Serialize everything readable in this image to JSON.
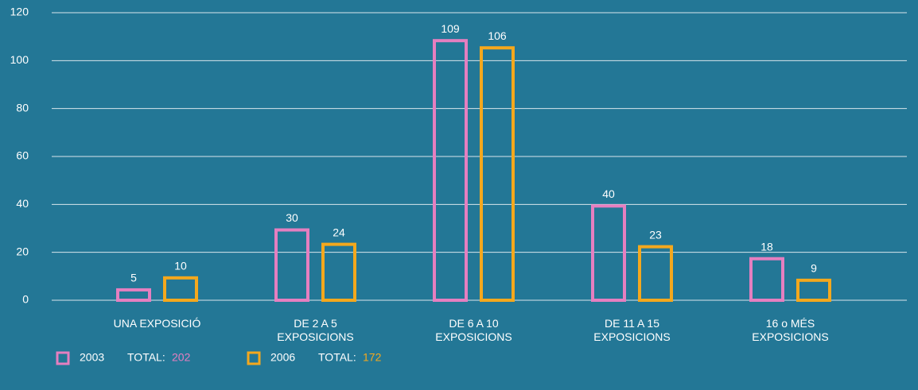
{
  "chart_data": {
    "type": "bar",
    "categories": [
      "UNA EXPOSICIÓ",
      "DE 2 A 5\nEXPOSICIONS",
      "DE 6 A 10\nEXPOSICIONS",
      "DE 11 A 15\nEXPOSICIONS",
      "16 o MÉS\nEXPOSICIONS"
    ],
    "series": [
      {
        "name": "2003",
        "color": "#e57fc0",
        "values": [
          5,
          30,
          109,
          40,
          18
        ],
        "total": 202
      },
      {
        "name": "2006",
        "color": "#f4a81d",
        "values": [
          10,
          24,
          106,
          23,
          9
        ],
        "total": 172
      }
    ],
    "total_label": "TOTAL:",
    "ylim": [
      0,
      120
    ],
    "yticks": [
      0,
      20,
      40,
      60,
      80,
      100,
      120
    ],
    "grid": true
  }
}
